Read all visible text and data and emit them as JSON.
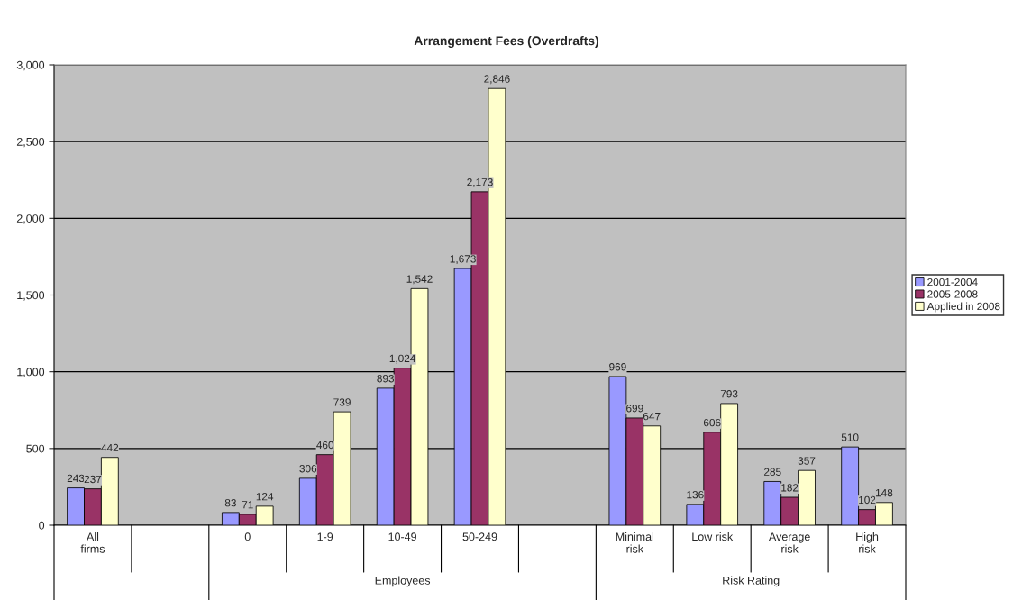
{
  "chart_data": {
    "type": "bar",
    "title": "Arrangement Fees (Overdrafts)",
    "categories": [
      "All firms",
      null,
      "0",
      "1-9",
      "10-49",
      "50-249",
      null,
      "Minimal risk",
      "Low risk",
      "Average risk",
      "High risk"
    ],
    "series": [
      {
        "name": "2001-2004",
        "color": "#9999ff",
        "values": [
          243,
          null,
          83,
          306,
          893,
          1673,
          null,
          969,
          136,
          285,
          510
        ],
        "value_labels": [
          "243",
          null,
          "83",
          "306",
          "893",
          "1,673",
          null,
          "969",
          "136",
          "285",
          "510"
        ]
      },
      {
        "name": "2005-2008",
        "color": "#993366",
        "values": [
          237,
          null,
          71,
          460,
          1024,
          2173,
          null,
          699,
          606,
          182,
          102
        ],
        "value_labels": [
          "237",
          null,
          "71",
          "460",
          "1,024",
          "2,173",
          null,
          "699",
          "606",
          "182",
          "102"
        ]
      },
      {
        "name": "Applied in 2008",
        "color": "#ffffcc",
        "values": [
          442,
          null,
          124,
          739,
          1542,
          2846,
          null,
          647,
          793,
          357,
          148
        ],
        "value_labels": [
          "442",
          null,
          "124",
          "739",
          "1,542",
          "2,846",
          null,
          "647",
          "793",
          "357",
          "148"
        ]
      }
    ],
    "ylim": [
      0,
      3000
    ],
    "yticks": [
      0,
      {
        "value": 500,
        "label": "500"
      },
      {
        "value": 1000,
        "label": "1,000"
      },
      {
        "value": 1500,
        "label": "1,500"
      },
      {
        "value": 2000,
        "label": "2,000"
      },
      {
        "value": 2500,
        "label": "2,500"
      },
      {
        "value": 3000,
        "label": "3,000"
      }
    ],
    "annotations": [
      "Employees",
      "Risk Rating"
    ],
    "grid": "y",
    "legend": "right"
  }
}
